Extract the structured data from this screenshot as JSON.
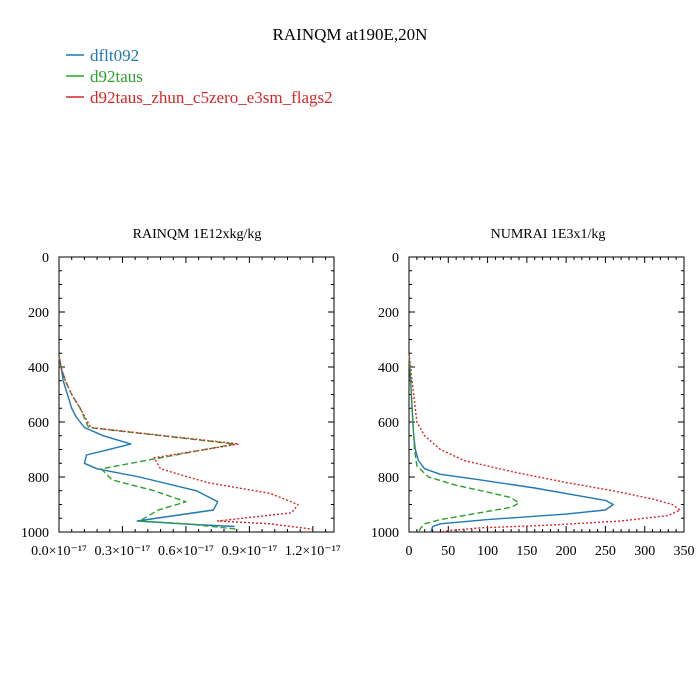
{
  "title": "RAINQM at190E,20N",
  "legend": [
    {
      "label": "dflt092",
      "color": "#1f77b4",
      "dash": "solid"
    },
    {
      "label": "d92taus",
      "color": "#2ca02c",
      "dash": "dashed"
    },
    {
      "label": "d92taus_zhun_c5zero_e3sm_flags2",
      "color": "#d62728",
      "dash": "dotted"
    }
  ],
  "chart_data": [
    {
      "type": "line",
      "title": "RAINQM  1E12xkg/kg",
      "xlim": [
        0,
        1.3e-17
      ],
      "ylim": [
        1000,
        0
      ],
      "y_inverted": true,
      "xticks": [
        0,
        3e-18,
        6e-18,
        9e-18,
        1.2e-17
      ],
      "xtick_labels": [
        "0.0×10⁻¹⁷",
        "0.3×10⁻¹⁷",
        "0.6×10⁻¹⁷",
        "0.9×10⁻¹⁷",
        "1.2×10⁻¹⁷"
      ],
      "yticks": [
        0,
        200,
        400,
        600,
        800,
        1000
      ],
      "ytick_labels": [
        "0",
        "200",
        "400",
        "600",
        "800",
        "1000"
      ],
      "series": [
        {
          "name": "dflt092",
          "x": [
            0,
            1e-19,
            2e-19,
            4e-19,
            6e-19,
            8e-19,
            1.2e-18,
            2.1e-18,
            3.4e-18,
            1.3e-18,
            1.2e-18,
            1.8e-18,
            3.8e-18,
            6.5e-18,
            7.5e-18,
            7.3e-18,
            3.7e-18,
            5.8e-18,
            8.3e-18
          ],
          "y": [
            360,
            400,
            450,
            500,
            550,
            580,
            620,
            650,
            680,
            720,
            750,
            770,
            800,
            850,
            890,
            920,
            960,
            970,
            980
          ]
        },
        {
          "name": "d92taus",
          "x": [
            0,
            1e-19,
            3e-19,
            6e-19,
            1e-18,
            1.4e-18,
            8.3e-18,
            2e-18,
            2.5e-18,
            4.5e-18,
            6e-18,
            4.7e-18,
            3.8e-18,
            6e-18,
            8.5e-18
          ],
          "y": [
            360,
            400,
            450,
            500,
            550,
            620,
            680,
            770,
            810,
            850,
            890,
            920,
            960,
            970,
            990
          ]
        },
        {
          "name": "d92taus_zhun_c5zero_e3sm_flags2",
          "x": [
            0,
            1e-19,
            3e-19,
            6e-19,
            1e-18,
            1.5e-18,
            8.5e-18,
            4.5e-18,
            4.8e-18,
            7e-18,
            1e-17,
            1.13e-17,
            1.1e-17,
            7.5e-18,
            1e-17,
            1.2e-17
          ],
          "y": [
            360,
            400,
            450,
            500,
            550,
            620,
            680,
            730,
            770,
            820,
            860,
            900,
            930,
            960,
            970,
            990
          ]
        }
      ]
    },
    {
      "type": "line",
      "title": "NUMRAI  1E3x1/kg",
      "xlim": [
        0,
        350
      ],
      "ylim": [
        1000,
        0
      ],
      "y_inverted": true,
      "xticks": [
        0,
        50,
        100,
        150,
        200,
        250,
        300,
        350
      ],
      "xtick_labels": [
        "0",
        "50",
        "100",
        "150",
        "200",
        "250",
        "300",
        "350"
      ],
      "yticks": [
        0,
        200,
        400,
        600,
        800,
        1000
      ],
      "ytick_labels": [
        "0",
        "200",
        "400",
        "600",
        "800",
        "1000"
      ],
      "series": [
        {
          "name": "dflt092",
          "x": [
            0,
            1,
            2,
            3,
            4,
            5,
            6,
            8,
            12,
            20,
            40,
            90,
            160,
            220,
            250,
            260,
            250,
            200,
            100,
            40,
            30,
            28
          ],
          "y": [
            350,
            400,
            450,
            500,
            550,
            600,
            650,
            700,
            740,
            770,
            790,
            810,
            840,
            870,
            885,
            900,
            920,
            935,
            955,
            970,
            980,
            1000
          ]
        },
        {
          "name": "d92taus",
          "x": [
            0,
            1,
            2,
            3,
            4,
            5,
            6,
            7,
            10,
            25,
            60,
            100,
            130,
            140,
            130,
            90,
            40,
            20,
            15,
            12
          ],
          "y": [
            350,
            400,
            450,
            500,
            550,
            600,
            650,
            700,
            760,
            800,
            830,
            855,
            875,
            895,
            910,
            930,
            955,
            970,
            985,
            1000
          ]
        },
        {
          "name": "d92taus_zhun_c5zero_e3sm_flags2",
          "x": [
            0,
            2,
            4,
            6,
            8,
            10,
            20,
            40,
            70,
            130,
            200,
            260,
            310,
            335,
            345,
            330,
            270,
            180,
            90,
            50,
            40
          ],
          "y": [
            350,
            400,
            450,
            500,
            550,
            600,
            650,
            700,
            740,
            780,
            820,
            850,
            880,
            900,
            920,
            940,
            960,
            975,
            985,
            995,
            1000
          ]
        }
      ]
    }
  ]
}
